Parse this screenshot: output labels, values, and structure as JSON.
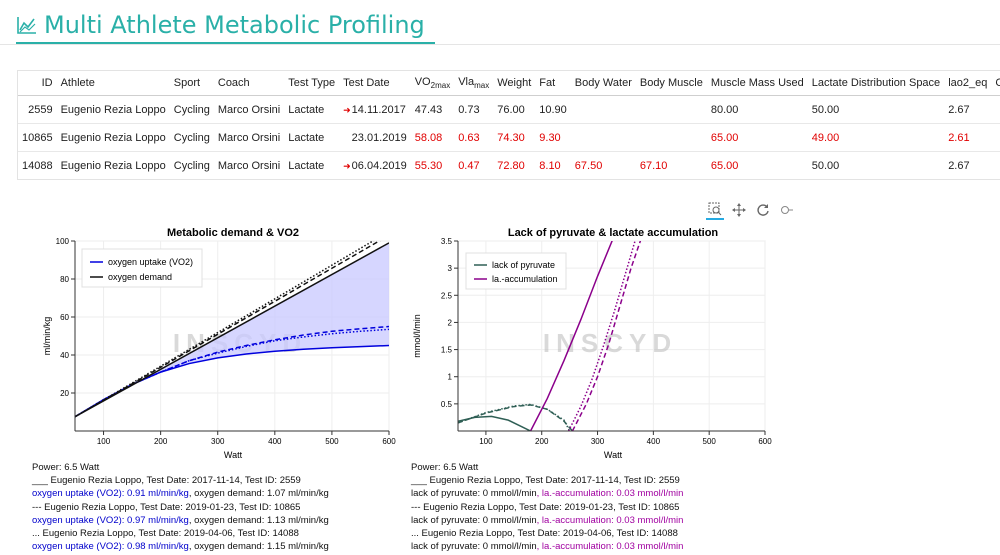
{
  "app": {
    "title": "Multi Athlete Metabolic Profiling"
  },
  "table": {
    "columns": [
      "ID",
      "Athlete",
      "Sport",
      "Coach",
      "Test Type",
      "Test Date",
      "VO",
      "Vla",
      "Weight",
      "Fat",
      "Body Water",
      "Body Muscle",
      "Muscle Mass Used",
      "Lactate Distribution Space",
      "lao2_eq",
      "Comment"
    ],
    "vo_sub": "2max",
    "vla_sub": "max",
    "rows": [
      {
        "id": "2559",
        "athlete": "Eugenio Rezia Loppo",
        "sport": "Cycling",
        "coach": "Marco Orsini",
        "type": "Lactate",
        "date": "14.11.2017",
        "vo2": "47.43",
        "vla": "0.73",
        "weight": "76.00",
        "fat": "10.90",
        "water": "",
        "muscle": "",
        "mmu": "80.00",
        "lds": "50.00",
        "lao2": "2.67",
        "comment": ""
      },
      {
        "id": "10865",
        "athlete": "Eugenio Rezia Loppo",
        "sport": "Cycling",
        "coach": "Marco Orsini",
        "type": "Lactate",
        "date": "23.01.2019",
        "vo2": "58.08",
        "vla": "0.63",
        "weight": "74.30",
        "fat": "9.30",
        "water": "",
        "muscle": "",
        "mmu": "65.00",
        "lds": "49.00",
        "lao2": "2.61",
        "comment": ""
      },
      {
        "id": "14088",
        "athlete": "Eugenio Rezia Loppo",
        "sport": "Cycling",
        "coach": "Marco Orsini",
        "type": "Lactate",
        "date": "06.04.2019",
        "vo2": "55.30",
        "vla": "0.47",
        "weight": "72.80",
        "fat": "8.10",
        "water": "67.50",
        "muscle": "67.10",
        "mmu": "65.00",
        "lds": "50.00",
        "lao2": "2.67",
        "comment": ""
      }
    ]
  },
  "toolbar": {
    "icons": [
      "box-zoom-icon",
      "pan-icon",
      "reset-icon",
      "hover-icon"
    ]
  },
  "charts": {
    "watermark": "INSCYD",
    "left": {
      "title": "Metabolic demand & VO2",
      "xlabel": "Watt",
      "ylabel": "ml/min/kg",
      "legend": [
        "oxygen uptake (VO2)",
        "oxygen demand"
      ]
    },
    "right": {
      "title": "Lack of pyruvate & lactate accumulation",
      "xlabel": "Watt",
      "ylabel": "mmol/l/min",
      "legend": [
        "lack of pyruvate",
        "la.-accumulation"
      ]
    }
  },
  "chart_data": [
    {
      "type": "line",
      "title": "Metabolic demand & VO2",
      "xlabel": "Watt",
      "ylabel": "ml/min/kg",
      "xlim": [
        50,
        600
      ],
      "ylim": [
        0,
        100
      ],
      "xticks": [
        100,
        200,
        300,
        400,
        500,
        600
      ],
      "yticks": [
        20,
        40,
        60,
        80,
        100
      ],
      "legend_position": "top-left",
      "series": [
        {
          "name": "oxygen uptake (VO2)",
          "style": "solid",
          "color": "#0000dd",
          "x": [
            50,
            100,
            150,
            200,
            250,
            300,
            350,
            400,
            450,
            500,
            550,
            600
          ],
          "y": [
            7.5,
            16.5,
            24.5,
            31,
            35.5,
            38.5,
            40.5,
            42,
            43,
            43.8,
            44.4,
            45
          ]
        },
        {
          "name": "oxygen uptake (VO2)",
          "style": "dashed",
          "color": "#0000dd",
          "x": [
            50,
            100,
            150,
            200,
            250,
            300,
            350,
            400,
            450,
            500,
            550,
            600
          ],
          "y": [
            7.5,
            16.5,
            24.5,
            31,
            37,
            41.5,
            45,
            48,
            50.5,
            52.5,
            53.8,
            55
          ]
        },
        {
          "name": "oxygen uptake (VO2)",
          "style": "dotted",
          "color": "#0000dd",
          "x": [
            50,
            100,
            150,
            200,
            250,
            300,
            350,
            400,
            450,
            500,
            550,
            600
          ],
          "y": [
            7.5,
            16.5,
            24.5,
            31,
            37,
            41,
            44.5,
            47.5,
            49.5,
            51.2,
            52.5,
            53.5
          ]
        },
        {
          "name": "oxygen demand",
          "style": "solid",
          "color": "#111111",
          "x": [
            50,
            600
          ],
          "y": [
            7.5,
            99
          ]
        },
        {
          "name": "oxygen demand",
          "style": "dashed",
          "color": "#111111",
          "x": [
            50,
            600
          ],
          "y": [
            7.5,
            103
          ]
        },
        {
          "name": "oxygen demand",
          "style": "dotted",
          "color": "#111111",
          "x": [
            50,
            600
          ],
          "y": [
            7.5,
            105
          ]
        }
      ]
    },
    {
      "type": "line",
      "title": "Lack of pyruvate & lactate accumulation",
      "xlabel": "Watt",
      "ylabel": "mmol/l/min",
      "xlim": [
        50,
        600
      ],
      "ylim": [
        0,
        3.5
      ],
      "xticks": [
        100,
        200,
        300,
        400,
        500,
        600
      ],
      "yticks": [
        0.5,
        1,
        1.5,
        2,
        2.5,
        3,
        3.5
      ],
      "legend_position": "top-left",
      "series": [
        {
          "name": "lack of pyruvate",
          "style": "solid",
          "color": "#2f5f55",
          "x": [
            50,
            80,
            110,
            140,
            160,
            180
          ],
          "y": [
            0.18,
            0.25,
            0.27,
            0.2,
            0.1,
            0
          ]
        },
        {
          "name": "lack of pyruvate",
          "style": "dashed",
          "color": "#2f5f55",
          "x": [
            50,
            100,
            150,
            180,
            210,
            240,
            255
          ],
          "y": [
            0.15,
            0.33,
            0.45,
            0.48,
            0.4,
            0.18,
            0
          ]
        },
        {
          "name": "lack of pyruvate",
          "style": "dotted",
          "color": "#2f5f55",
          "x": [
            50,
            100,
            150,
            180,
            210,
            240,
            250
          ],
          "y": [
            0.15,
            0.34,
            0.46,
            0.49,
            0.4,
            0.2,
            0
          ]
        },
        {
          "name": "la.-accumulation",
          "style": "solid",
          "color": "#8b008b",
          "x": [
            180,
            210,
            240,
            270,
            300,
            330
          ],
          "y": [
            0,
            0.6,
            1.3,
            2.05,
            2.85,
            3.6
          ]
        },
        {
          "name": "la.-accumulation",
          "style": "dashed",
          "color": "#8b008b",
          "x": [
            255,
            280,
            300,
            320,
            340,
            360,
            380
          ],
          "y": [
            0,
            0.5,
            1,
            1.6,
            2.3,
            3,
            3.6
          ]
        },
        {
          "name": "la.-accumulation",
          "style": "dotted",
          "color": "#8b008b",
          "x": [
            248,
            270,
            290,
            310,
            330,
            350,
            370
          ],
          "y": [
            0,
            0.45,
            0.95,
            1.55,
            2.2,
            2.9,
            3.6
          ]
        }
      ]
    }
  ],
  "readouts": {
    "left": [
      {
        "text": "Power: 6.5 Watt",
        "cls": "k"
      },
      {
        "text": "___ Eugenio Rezia Loppo, Test Date: 2017-11-14, Test ID: 2559",
        "cls": "k"
      },
      {
        "a": "oxygen uptake (VO2): 0.91 ml/min/kg",
        "b": ", oxygen demand: 1.07 ml/min/kg",
        "acls": "blue",
        "bcls": "k"
      },
      {
        "text": "--- Eugenio Rezia Loppo, Test Date: 2019-01-23, Test ID: 10865",
        "cls": "k"
      },
      {
        "a": "oxygen uptake (VO2): 0.97 ml/min/kg",
        "b": ", oxygen demand: 1.13 ml/min/kg",
        "acls": "blue",
        "bcls": "k"
      },
      {
        "text": "... Eugenio Rezia Loppo, Test Date: 2019-04-06, Test ID: 14088",
        "cls": "k"
      },
      {
        "a": "oxygen uptake (VO2): 0.98 ml/min/kg",
        "b": ", oxygen demand: 1.15 ml/min/kg",
        "acls": "blue",
        "bcls": "k"
      }
    ],
    "right": [
      {
        "text": "Power: 6.5 Watt",
        "cls": "k"
      },
      {
        "text": "___ Eugenio Rezia Loppo, Test Date: 2017-11-14, Test ID: 2559",
        "cls": "k"
      },
      {
        "a": "lack of pyruvate: 0 mmol/l/min",
        "b": ", la.-accumulation: 0.03 mmol/l/min",
        "acls": "k",
        "bcls": "purple"
      },
      {
        "text": "--- Eugenio Rezia Loppo, Test Date: 2019-01-23, Test ID: 10865",
        "cls": "k"
      },
      {
        "a": "lack of pyruvate: 0 mmol/l/min",
        "b": ", la.-accumulation: 0.03 mmol/l/min",
        "acls": "k",
        "bcls": "purple"
      },
      {
        "text": "... Eugenio Rezia Loppo, Test Date: 2019-04-06, Test ID: 14088",
        "cls": "k"
      },
      {
        "a": "lack of pyruvate: 0 mmol/l/min",
        "b": ", la.-accumulation: 0.03 mmol/l/min",
        "acls": "k",
        "bcls": "purple"
      }
    ]
  },
  "colors": {
    "accent": "#2ab0a8",
    "red": "#e00000",
    "blue": "#0000dd",
    "purple": "#8b008b",
    "fill": "#c8c8ff"
  }
}
